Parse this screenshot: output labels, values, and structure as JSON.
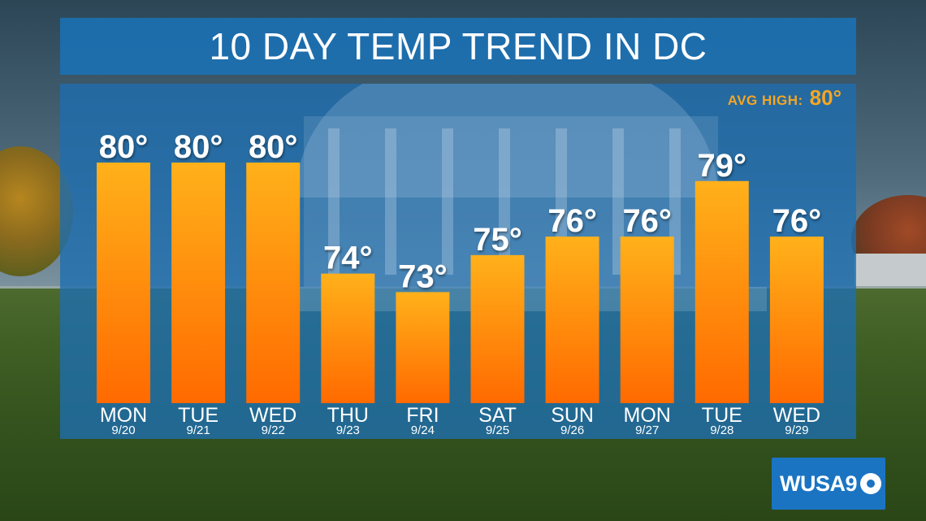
{
  "title": "10 DAY TEMP TREND IN DC",
  "avg_high": {
    "label": "AVG HIGH:",
    "value": "80°"
  },
  "logo": {
    "text": "WUSA9"
  },
  "colors": {
    "panel": "#1c70b2",
    "bar_top": "#ffb11a",
    "bar_bottom": "#ff6a00",
    "accent": "#f5a623",
    "text": "#ffffff"
  },
  "chart_data": {
    "type": "bar",
    "categories": [
      "MON",
      "TUE",
      "WED",
      "THU",
      "FRI",
      "SAT",
      "SUN",
      "MON",
      "TUE",
      "WED"
    ],
    "dates": [
      "9/20",
      "9/21",
      "9/22",
      "9/23",
      "9/24",
      "9/25",
      "9/26",
      "9/27",
      "9/28",
      "9/29"
    ],
    "values": [
      80,
      80,
      80,
      74,
      73,
      75,
      76,
      76,
      79,
      76
    ],
    "value_labels": [
      "80°",
      "80°",
      "80°",
      "74°",
      "73°",
      "75°",
      "76°",
      "76°",
      "79°",
      "76°"
    ],
    "title": "10 DAY TEMP TREND IN DC",
    "ylim": [
      67,
      80
    ],
    "grid": false,
    "legend": "none"
  }
}
